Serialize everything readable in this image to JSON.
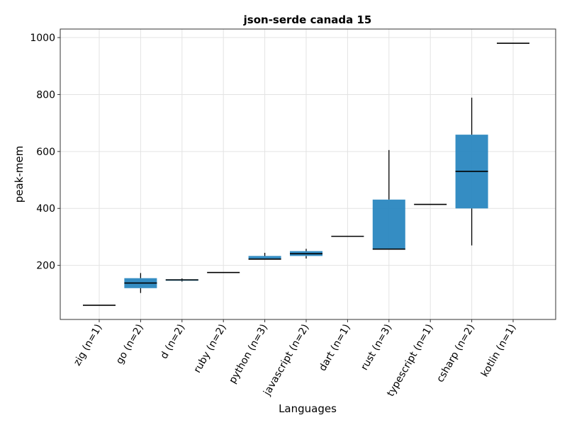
{
  "chart_data": {
    "type": "box",
    "title": "json-serde canada 15",
    "xlabel": "Languages",
    "ylabel": "peak-mem",
    "ylim": [
      10,
      1030
    ],
    "yticks": [
      200,
      400,
      600,
      800,
      1000
    ],
    "grid": true,
    "box_color": "#2a87c0",
    "categories": [
      "zig (n=1)",
      "go (n=2)",
      "d (n=2)",
      "ruby (n=2)",
      "python (n=3)",
      "javascript (n=2)",
      "dart (n=1)",
      "rust (n=3)",
      "typescript (n=1)",
      "csharp (n=2)",
      "kotlin (n=1)"
    ],
    "boxes": [
      {
        "min": 60,
        "q1": 60,
        "median": 60,
        "q3": 60,
        "max": 60
      },
      {
        "min": 103,
        "q1": 120,
        "median": 138,
        "q3": 155,
        "max": 173
      },
      {
        "min": 143,
        "q1": 146,
        "median": 149,
        "q3": 151,
        "max": 154
      },
      {
        "min": 174,
        "q1": 174,
        "median": 175,
        "q3": 175,
        "max": 175
      },
      {
        "min": 222,
        "q1": 222,
        "median": 222,
        "q3": 233,
        "max": 244
      },
      {
        "min": 224,
        "q1": 233,
        "median": 241,
        "q3": 250,
        "max": 258
      },
      {
        "min": 302,
        "q1": 302,
        "median": 302,
        "q3": 302,
        "max": 302
      },
      {
        "min": 257,
        "q1": 257,
        "median": 257,
        "q3": 431,
        "max": 605
      },
      {
        "min": 414,
        "q1": 414,
        "median": 414,
        "q3": 414,
        "max": 414
      },
      {
        "min": 270,
        "q1": 400,
        "median": 530,
        "q3": 659,
        "max": 789
      },
      {
        "min": 980,
        "q1": 980,
        "median": 980,
        "q3": 980,
        "max": 980
      }
    ]
  }
}
